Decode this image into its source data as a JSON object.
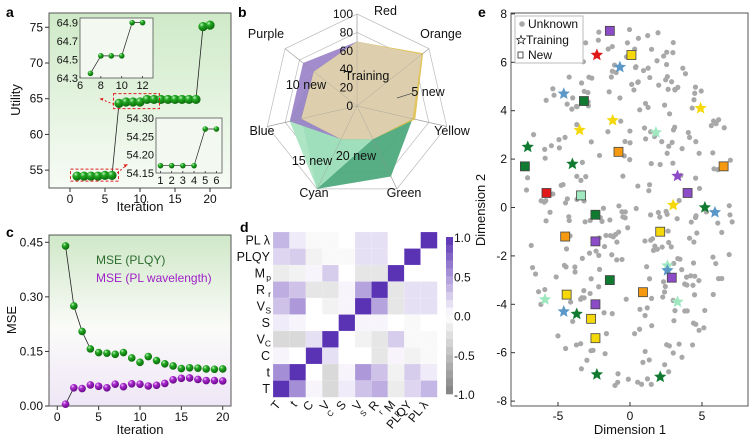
{
  "figure": {
    "panels": [
      "a",
      "b",
      "c",
      "d",
      "e"
    ]
  },
  "chart_data": [
    {
      "panel": "a",
      "type": "line",
      "title": "",
      "xlabel": "Iteration",
      "ylabel": "Utility",
      "xlim": [
        -3,
        23
      ],
      "ylim": [
        52.5,
        77
      ],
      "xticks": [
        0,
        5,
        10,
        15,
        20
      ],
      "yticks": [
        55,
        60,
        65,
        70,
        75
      ],
      "series": [
        {
          "name": "Utility",
          "color": "#1a9a1a",
          "x": [
            1,
            2,
            3,
            4,
            5,
            6,
            7,
            8,
            9,
            10,
            11,
            12,
            13,
            14,
            15,
            16,
            17,
            18,
            19,
            20
          ],
          "y": [
            54.17,
            54.17,
            54.17,
            54.17,
            54.27,
            54.27,
            64.35,
            64.54,
            64.54,
            64.54,
            64.9,
            64.9,
            64.9,
            64.9,
            64.9,
            64.9,
            64.9,
            64.9,
            75.1,
            75.3
          ]
        }
      ],
      "insets": [
        {
          "name": "inset-top",
          "x": [
            7,
            8,
            9,
            10,
            11,
            12
          ],
          "y": [
            64.35,
            64.54,
            64.54,
            64.54,
            64.9,
            64.9
          ],
          "xlim": [
            6,
            13
          ],
          "ylim": [
            64.3,
            64.95
          ],
          "xticks": [
            6,
            8,
            10,
            12
          ],
          "yticks": [
            64.3,
            64.5,
            64.7,
            64.9
          ],
          "ytick_labels": [
            "64.3",
            "64.5",
            "64.7",
            "64.9"
          ]
        },
        {
          "name": "inset-bottom",
          "x": [
            1,
            2,
            3,
            4,
            5,
            6
          ],
          "y": [
            54.17,
            54.17,
            54.17,
            54.17,
            54.27,
            54.27
          ],
          "xlim": [
            0.6,
            6.5
          ],
          "ylim": [
            54.15,
            54.3
          ],
          "xticks": [
            1,
            2,
            3,
            4,
            5,
            6
          ],
          "yticks": [
            54.15,
            54.2,
            54.25,
            54.3
          ],
          "ytick_labels": [
            "54.15",
            "54.20",
            "54.25",
            "54.30"
          ]
        }
      ]
    },
    {
      "panel": "b",
      "type": "radar",
      "axes": [
        "Red",
        "Orange",
        "Yellow",
        "Green",
        "Cyan",
        "Blue",
        "Purple"
      ],
      "rticks": [
        0,
        20,
        40,
        60,
        80,
        100
      ],
      "rlim": [
        0,
        100
      ],
      "series": [
        {
          "name": "20 new",
          "color": "#4aa77a",
          "values": [
            70,
            90,
            62,
            85,
            100,
            62,
            60
          ]
        },
        {
          "name": "15 new",
          "color": "#a6e3c0",
          "values": [
            70,
            90,
            62,
            40,
            100,
            75,
            60
          ]
        },
        {
          "name": "10 new",
          "color": "#9a82c8",
          "values": [
            70,
            90,
            62,
            40,
            40,
            75,
            75
          ]
        },
        {
          "name": "5 new",
          "color": "#e0c050",
          "values": [
            70,
            92,
            65,
            40,
            40,
            62,
            60
          ]
        },
        {
          "name": "Training",
          "color": "#ddd0b4",
          "values": [
            70,
            90,
            62,
            40,
            40,
            62,
            60
          ]
        }
      ],
      "annotations": [
        "Training",
        "5 new",
        "10 new",
        "15 new",
        "20 new"
      ]
    },
    {
      "panel": "c",
      "type": "line",
      "xlabel": "Iteration",
      "ylabel": "MSE",
      "xlim": [
        -1,
        21
      ],
      "ylim": [
        0,
        0.47
      ],
      "xticks": [
        0,
        5,
        10,
        15,
        20
      ],
      "yticks": [
        0.0,
        0.15,
        0.3,
        0.45
      ],
      "ytick_labels": [
        "0.00",
        "0.15",
        "0.30",
        "0.45"
      ],
      "series": [
        {
          "name": "MSE (PLQY)",
          "color": "#1a9a1a",
          "label_color": "#2e6b2e",
          "x": [
            1,
            2,
            3,
            4,
            5,
            6,
            7,
            8,
            9,
            10,
            11,
            12,
            13,
            14,
            15,
            16,
            17,
            18,
            19,
            20
          ],
          "y": [
            0.44,
            0.275,
            0.205,
            0.157,
            0.147,
            0.145,
            0.142,
            0.147,
            0.132,
            0.12,
            0.136,
            0.125,
            0.116,
            0.11,
            0.103,
            0.105,
            0.104,
            0.102,
            0.101,
            0.102
          ]
        },
        {
          "name": "MSE (PL wavelength)",
          "color": "#a020c8",
          "label_color": "#a020c8",
          "x": [
            1,
            2,
            3,
            4,
            5,
            6,
            7,
            8,
            9,
            10,
            11,
            12,
            13,
            14,
            15,
            16,
            17,
            18,
            19,
            20
          ],
          "y": [
            0.005,
            0.05,
            0.048,
            0.058,
            0.054,
            0.05,
            0.06,
            0.053,
            0.061,
            0.06,
            0.055,
            0.057,
            0.062,
            0.072,
            0.076,
            0.077,
            0.073,
            0.07,
            0.07,
            0.069
          ]
        }
      ]
    },
    {
      "panel": "d",
      "type": "heatmap",
      "row_labels": [
        "PL λ",
        "PLQY",
        "Mp",
        "Rr",
        "VS",
        "S",
        "VC",
        "C",
        "t",
        "T"
      ],
      "row_labels_main": [
        "PL λ",
        "PLQY",
        "M",
        "R",
        "V",
        "S",
        "V",
        "C",
        "t",
        "T"
      ],
      "row_labels_sub": [
        "",
        "",
        "p",
        "r",
        "S",
        "",
        "C",
        "",
        "",
        ""
      ],
      "col_labels_main": [
        "T",
        "t",
        "C",
        "V",
        "S",
        "V",
        "R",
        "M",
        "PLQY",
        "PL λ"
      ],
      "col_labels_sub": [
        "",
        "",
        "",
        "C",
        "",
        "S",
        "r",
        "p",
        "",
        ""
      ],
      "colorbar": {
        "min": -1.0,
        "max": 1.0,
        "ticks": [
          "1.0",
          "0.5",
          "0.0",
          "-0.5",
          "-1.0"
        ]
      },
      "columns_order": [
        "T",
        "t",
        "C",
        "VC",
        "S",
        "VS",
        "Rr",
        "Mp",
        "PLQY",
        "PL λ"
      ],
      "matrix": [
        [
          1.0,
          0.55,
          0.05,
          -0.3,
          0.1,
          0.3,
          0.4,
          -0.15,
          0.2,
          0.35
        ],
        [
          0.55,
          1.0,
          0.0,
          -0.3,
          0.05,
          0.5,
          0.3,
          -0.1,
          0.25,
          0.1
        ],
        [
          0.05,
          0.0,
          1.0,
          0.15,
          0.0,
          0.0,
          -0.2,
          0.05,
          -0.1,
          -0.05
        ],
        [
          -0.3,
          -0.3,
          0.15,
          1.0,
          0.0,
          -0.1,
          -0.2,
          0.25,
          -0.05,
          -0.05
        ],
        [
          0.1,
          0.05,
          0.0,
          0.0,
          1.0,
          0.05,
          0.05,
          0.0,
          -0.05,
          0.0
        ],
        [
          0.3,
          0.5,
          0.0,
          -0.1,
          0.05,
          1.0,
          0.45,
          -0.2,
          0.15,
          0.15
        ],
        [
          0.4,
          0.3,
          -0.2,
          -0.2,
          0.05,
          0.45,
          1.0,
          -0.2,
          0.15,
          0.15
        ],
        [
          -0.15,
          -0.1,
          0.05,
          0.25,
          0.0,
          -0.2,
          -0.2,
          1.0,
          0.0,
          0.0
        ],
        [
          0.2,
          0.25,
          -0.1,
          -0.05,
          -0.05,
          0.15,
          0.15,
          0.0,
          1.0,
          0.0
        ],
        [
          0.35,
          0.1,
          -0.05,
          -0.05,
          0.0,
          0.15,
          0.15,
          0.0,
          0.0,
          1.0
        ]
      ]
    },
    {
      "panel": "e",
      "type": "scatter",
      "xlabel": "Dimension 1",
      "ylabel": "Dimension 2",
      "xlim": [
        -8.2,
        8.2
      ],
      "ylim": [
        -8.2,
        8.2
      ],
      "xticks": [
        -5,
        0,
        5
      ],
      "yticks": [
        -8,
        -6,
        -4,
        -2,
        0,
        2,
        4,
        6,
        8
      ],
      "legend": {
        "position": "top-left",
        "entries": [
          "Unknown",
          "Training",
          "New"
        ]
      },
      "training": [
        {
          "x": -2.3,
          "y": 6.3,
          "color": "#e01818"
        },
        {
          "x": -0.7,
          "y": 5.8,
          "color": "#5b98c8"
        },
        {
          "x": -4.6,
          "y": 4.7,
          "color": "#5b98c8"
        },
        {
          "x": -1.2,
          "y": 3.6,
          "color": "#f5d80a"
        },
        {
          "x": -3.5,
          "y": 3.2,
          "color": "#f5d80a"
        },
        {
          "x": 4.9,
          "y": 4.1,
          "color": "#f5d80a"
        },
        {
          "x": 1.8,
          "y": 3.1,
          "color": "#a0e8c0"
        },
        {
          "x": -7.1,
          "y": 2.5,
          "color": "#107a30"
        },
        {
          "x": -4.0,
          "y": 1.8,
          "color": "#107a30"
        },
        {
          "x": 3.3,
          "y": 1.3,
          "color": "#8c4cc8"
        },
        {
          "x": 3.0,
          "y": 0.1,
          "color": "#f5d80a"
        },
        {
          "x": 5.2,
          "y": 0.0,
          "color": "#107a30"
        },
        {
          "x": 5.9,
          "y": -0.2,
          "color": "#5b98c8"
        },
        {
          "x": 2.6,
          "y": -2.4,
          "color": "#a0e8c0"
        },
        {
          "x": 2.6,
          "y": -2.6,
          "color": "#5b98c8"
        },
        {
          "x": 3.3,
          "y": -3.9,
          "color": "#a0e8c0"
        },
        {
          "x": -5.9,
          "y": -3.8,
          "color": "#a0e8c0"
        },
        {
          "x": -4.6,
          "y": -4.3,
          "color": "#5b98c8"
        },
        {
          "x": -3.7,
          "y": -4.4,
          "color": "#107a30"
        },
        {
          "x": -2.3,
          "y": -6.9,
          "color": "#107a30"
        },
        {
          "x": 2.1,
          "y": -7.0,
          "color": "#107a30"
        }
      ],
      "new": [
        {
          "x": -1.4,
          "y": 7.3,
          "color": "#8c4cc8"
        },
        {
          "x": 0.1,
          "y": 6.3,
          "color": "#f5d80a"
        },
        {
          "x": -3.2,
          "y": 4.4,
          "color": "#107a30"
        },
        {
          "x": -0.8,
          "y": 2.3,
          "color": "#f59a10"
        },
        {
          "x": 6.5,
          "y": 1.7,
          "color": "#f59a10"
        },
        {
          "x": -7.3,
          "y": 1.7,
          "color": "#107a30"
        },
        {
          "x": -5.8,
          "y": 0.6,
          "color": "#e01818"
        },
        {
          "x": -3.4,
          "y": 0.5,
          "color": "#a0e8c0"
        },
        {
          "x": 4.0,
          "y": 0.6,
          "color": "#8c4cc8"
        },
        {
          "x": -2.4,
          "y": -0.3,
          "color": "#107a30"
        },
        {
          "x": 2.1,
          "y": -1.0,
          "color": "#f5d80a"
        },
        {
          "x": -4.5,
          "y": -1.2,
          "color": "#f59a10"
        },
        {
          "x": -2.4,
          "y": -1.4,
          "color": "#8c4cc8"
        },
        {
          "x": 2.9,
          "y": -2.9,
          "color": "#8c4cc8"
        },
        {
          "x": -1.4,
          "y": -3.0,
          "color": "#107a30"
        },
        {
          "x": -4.4,
          "y": -3.6,
          "color": "#f5d80a"
        },
        {
          "x": 0.9,
          "y": -3.5,
          "color": "#f59a10"
        },
        {
          "x": -2.4,
          "y": -4.0,
          "color": "#8c4cc8"
        },
        {
          "x": -2.7,
          "y": -4.6,
          "color": "#f5d80a"
        },
        {
          "x": -2.4,
          "y": -5.4,
          "color": "#f5d80a"
        }
      ],
      "unknown_count_approx": 300,
      "unknown_color": "#a8a8a8"
    }
  ]
}
